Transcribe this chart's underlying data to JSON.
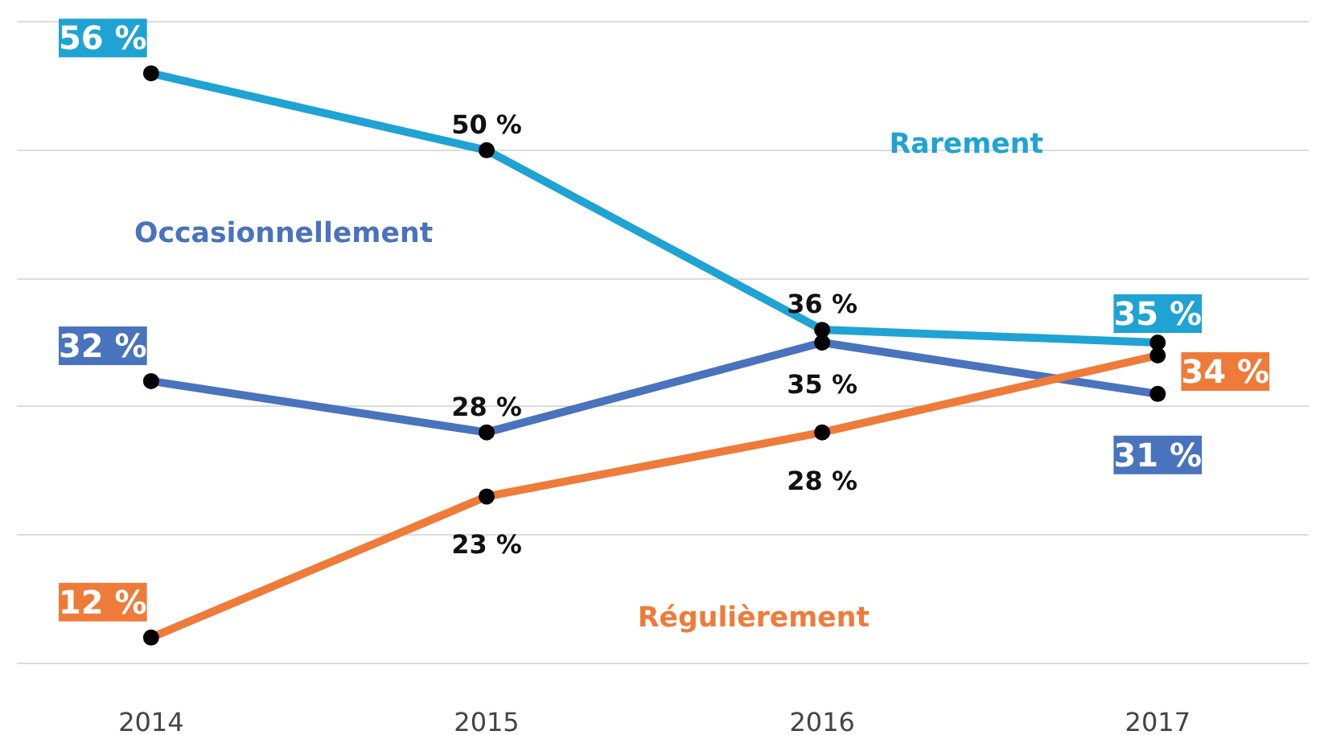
{
  "chart_data": {
    "type": "line",
    "categories": [
      "2014",
      "2015",
      "2016",
      "2017"
    ],
    "series": [
      {
        "name": "Rarement",
        "color": "#1fa3d4",
        "values": [
          56,
          50,
          36,
          35
        ],
        "value_labels": [
          "56 %",
          "50 %",
          "36 %",
          "35 %"
        ]
      },
      {
        "name": "Occasionnellement",
        "color": "#4a73bd",
        "values": [
          32,
          28,
          35,
          31
        ],
        "value_labels": [
          "32 %",
          "28 %",
          "35 %",
          "31 %"
        ]
      },
      {
        "name": "Régulièrement",
        "color": "#ef7b3a",
        "values": [
          12,
          23,
          28,
          34
        ],
        "value_labels": [
          "12 %",
          "23 %",
          "28 %",
          "34 %"
        ]
      }
    ],
    "yticks": [
      {
        "value": 10,
        "label": null
      },
      {
        "value": 20,
        "label": null
      },
      {
        "value": 30,
        "label": null
      },
      {
        "value": 40,
        "label": null
      },
      {
        "value": 50,
        "label": null
      },
      {
        "value": 60,
        "label": null
      }
    ],
    "grid": "y",
    "marker": "circle",
    "line_style": "solid",
    "tick_labels": "x"
  }
}
